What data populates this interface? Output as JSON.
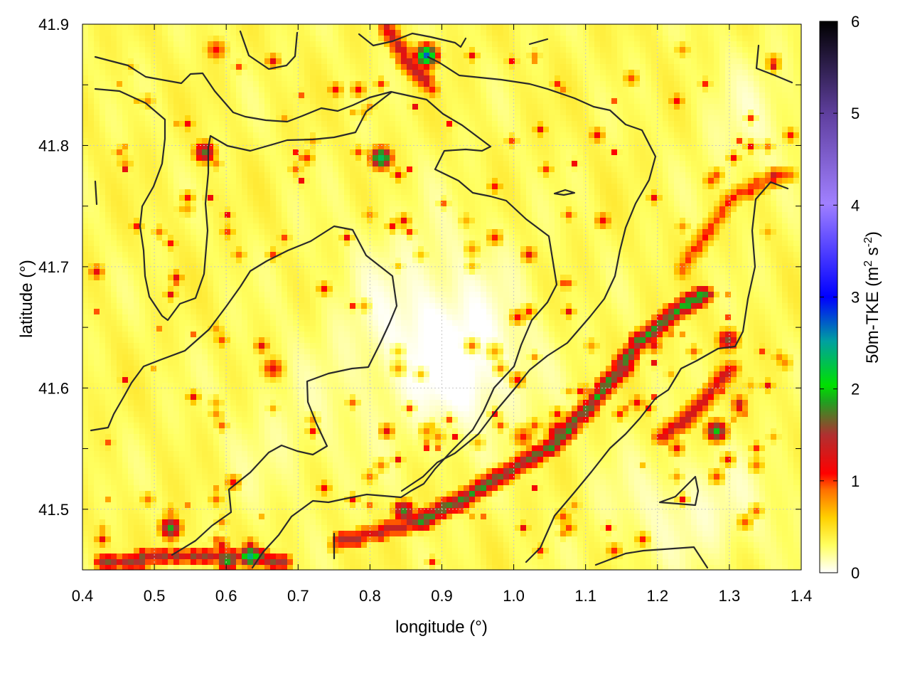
{
  "chart_data": {
    "type": "heatmap",
    "title": "",
    "xlabel": "longitude (°)",
    "ylabel": "latitude (°)",
    "colorbar_label": "50m-TKE (m² s⁻²)",
    "colorbar_label_main": "50m-TKE (m",
    "colorbar_label_exp1": "2",
    "colorbar_label_mid": " s",
    "colorbar_label_exp2": "-2",
    "colorbar_label_end": ")",
    "xlim": [
      0.4,
      1.4
    ],
    "ylim": [
      41.45,
      41.9
    ],
    "x_ticks": [
      0.4,
      0.5,
      0.6,
      0.7,
      0.8,
      0.9,
      1.0,
      1.1,
      1.2,
      1.3,
      1.4
    ],
    "x_tick_labels": [
      "0.4",
      "0.5",
      "0.6",
      "0.7",
      "0.8",
      "0.9",
      "1.0",
      "1.1",
      "1.2",
      "1.3",
      "1.4"
    ],
    "y_ticks": [
      41.5,
      41.6,
      41.7,
      41.8,
      41.9
    ],
    "y_tick_labels": [
      "41.5",
      "41.6",
      "41.7",
      "41.8",
      "41.9"
    ],
    "colorbar_range": [
      0,
      6
    ],
    "colorbar_ticks": [
      0,
      1,
      2,
      3,
      4,
      5,
      6
    ],
    "colorbar_tick_labels": [
      "0",
      "1",
      "2",
      "3",
      "4",
      "5",
      "6"
    ],
    "grid": true,
    "colormap": [
      "#ffffff",
      "#ffff40",
      "#ffc000",
      "#ff6000",
      "#ff0000",
      "#cc2020",
      "#20c020",
      "#00c000",
      "#0000ff",
      "#a080ff",
      "#6040a0",
      "#000000"
    ],
    "hotspots": [
      {
        "lon": 0.63,
        "lat": 41.462,
        "value": 2.0
      },
      {
        "lon": 0.6,
        "lat": 41.458,
        "value": 1.6
      },
      {
        "lon": 0.52,
        "lat": 41.488,
        "value": 1.8
      },
      {
        "lon": 0.815,
        "lat": 41.79,
        "value": 2.2
      },
      {
        "lon": 0.875,
        "lat": 41.877,
        "value": 2.6
      },
      {
        "lon": 0.57,
        "lat": 41.798,
        "value": 1.6
      },
      {
        "lon": 0.845,
        "lat": 41.503,
        "value": 1.7
      },
      {
        "lon": 1.278,
        "lat": 41.567,
        "value": 1.9
      },
      {
        "lon": 1.295,
        "lat": 41.643,
        "value": 1.5
      },
      {
        "lon": 0.66,
        "lat": 41.62,
        "value": 1.1
      },
      {
        "lon": 1.06,
        "lat": 41.565,
        "value": 1.2
      },
      {
        "lon": 0.585,
        "lat": 41.88,
        "value": 1.0
      },
      {
        "lon": 1.01,
        "lat": 41.56,
        "value": 1.0
      },
      {
        "lon": 1.15,
        "lat": 41.62,
        "value": 1.1
      }
    ],
    "ridges": [
      {
        "path": [
          [
            0.86,
            41.49
          ],
          [
            0.95,
            41.52
          ],
          [
            1.05,
            41.555
          ],
          [
            1.12,
            41.6
          ],
          [
            1.17,
            41.64
          ],
          [
            1.22,
            41.665
          ],
          [
            1.26,
            41.68
          ]
        ],
        "value": 1.2
      },
      {
        "path": [
          [
            0.75,
            41.475
          ],
          [
            0.85,
            41.49
          ],
          [
            0.93,
            41.51
          ]
        ],
        "value": 1.0
      },
      {
        "path": [
          [
            0.42,
            41.458
          ],
          [
            0.55,
            41.465
          ],
          [
            0.68,
            41.46
          ]
        ],
        "value": 1.1
      },
      {
        "path": [
          [
            1.2,
            41.56
          ],
          [
            1.25,
            41.585
          ],
          [
            1.3,
            41.62
          ]
        ],
        "value": 0.9
      },
      {
        "path": [
          [
            0.82,
            41.9
          ],
          [
            0.85,
            41.87
          ],
          [
            0.88,
            41.85
          ]
        ],
        "value": 0.9
      },
      {
        "path": [
          [
            1.23,
            41.7
          ],
          [
            1.3,
            41.76
          ],
          [
            1.38,
            41.78
          ]
        ],
        "value": 0.7
      }
    ]
  }
}
